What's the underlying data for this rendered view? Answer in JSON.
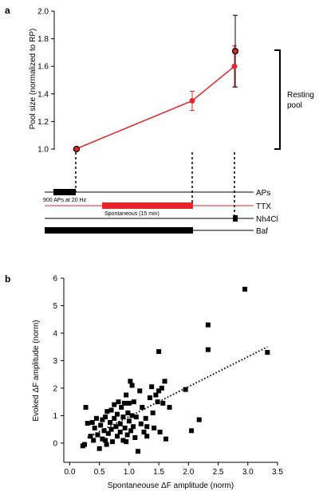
{
  "panels": {
    "a": "a",
    "b": "b"
  },
  "colors": {
    "red": "#e8232a",
    "black": "#000000"
  },
  "chart_data": [
    {
      "panel": "a",
      "type": "line",
      "ylabel": "Pool size (normalized to RP)",
      "ylim": [
        1.0,
        2.0
      ],
      "yticks": [
        "1.0",
        "1.2",
        "1.4",
        "1.6",
        "1.8",
        "2.0"
      ],
      "series": [
        {
          "color": "#e8232a",
          "points": [
            {
              "t": 0,
              "y": 1.0,
              "err": 0
            },
            {
              "t": 1,
              "y": 1.35,
              "err": 0.07
            },
            {
              "t": 2,
              "y": 1.6,
              "err": 0.15
            }
          ]
        },
        {
          "color": "#000000",
          "points": [
            {
              "t": 0,
              "y": 1.0,
              "err": 0
            },
            {
              "t": 2,
              "y": 1.71,
              "err": 0.26
            }
          ]
        }
      ],
      "bracket_label": [
        "Resting",
        "pool"
      ],
      "protocol_rows": [
        {
          "label": "APs",
          "bar_label": "900 APs at 20 Hz"
        },
        {
          "label": "TTX",
          "bar_label": "Spontaneous (15 min)"
        },
        {
          "label": "Nh4Cl",
          "bar_label": ""
        },
        {
          "label": "Baf",
          "bar_label": ""
        }
      ]
    },
    {
      "panel": "b",
      "type": "scatter",
      "xlabel": "Spontaneouse ΔF amplitude (norm)",
      "ylabel": "Evoked ΔF amplitude (norm)",
      "xlim": [
        -0.1,
        3.5
      ],
      "ylim": [
        -0.7,
        6
      ],
      "xticks": [
        "0.0",
        "0.5",
        "1.0",
        "1.5",
        "2.0",
        "2.5",
        "3.0",
        "3.5"
      ],
      "yticks": [
        "0",
        "1",
        "2",
        "3",
        "4",
        "5",
        "6"
      ],
      "trendline": {
        "x": [
          0.3,
          3.33
        ],
        "y": [
          0.2,
          3.5
        ]
      },
      "points": [
        [
          0.22,
          -0.1
        ],
        [
          0.25,
          -0.05
        ],
        [
          0.27,
          1.3
        ],
        [
          0.3,
          0.72
        ],
        [
          0.35,
          0.25
        ],
        [
          0.38,
          0.75
        ],
        [
          0.4,
          0.1
        ],
        [
          0.42,
          0.55
        ],
        [
          0.45,
          0.9
        ],
        [
          0.47,
          0.3
        ],
        [
          0.5,
          -0.2
        ],
        [
          0.52,
          0.65
        ],
        [
          0.55,
          0.85
        ],
        [
          0.55,
          0.15
        ],
        [
          0.58,
          0.45
        ],
        [
          0.6,
          0.95
        ],
        [
          0.62,
          -0.05
        ],
        [
          0.63,
          1.15
        ],
        [
          0.65,
          0.35
        ],
        [
          0.68,
          0.75
        ],
        [
          0.7,
          1.2
        ],
        [
          0.7,
          0.5
        ],
        [
          0.72,
          0.05
        ],
        [
          0.75,
          0.9
        ],
        [
          0.75,
          1.4
        ],
        [
          0.78,
          0.6
        ],
        [
          0.8,
          0.25
        ],
        [
          0.8,
          1.05
        ],
        [
          0.82,
          1.5
        ],
        [
          0.85,
          0.4
        ],
        [
          0.85,
          0.7
        ],
        [
          0.87,
          1.3
        ],
        [
          0.9,
          0.1
        ],
        [
          0.9,
          0.95
        ],
        [
          0.92,
          1.45
        ],
        [
          0.93,
          0.55
        ],
        [
          0.95,
          1.75
        ],
        [
          0.97,
          0.3
        ],
        [
          0.98,
          1.1
        ],
        [
          1.0,
          0.8
        ],
        [
          1.0,
          1.45
        ],
        [
          1.02,
          2.25
        ],
        [
          1.03,
          0.45
        ],
        [
          1.05,
          2.1
        ],
        [
          1.05,
          1.0
        ],
        [
          1.07,
          0.6
        ],
        [
          1.08,
          1.5
        ],
        [
          1.1,
          0.2
        ],
        [
          1.12,
          0.95
        ],
        [
          1.15,
          -0.3
        ],
        [
          1.18,
          1.9
        ],
        [
          1.2,
          0.7
        ],
        [
          1.22,
          1.3
        ],
        [
          1.25,
          0.4
        ],
        [
          1.28,
          0.9
        ],
        [
          1.3,
          0.25
        ],
        [
          1.35,
          1.65
        ],
        [
          1.38,
          2.05
        ],
        [
          1.4,
          1.1
        ],
        [
          1.42,
          0.55
        ],
        [
          1.45,
          1.75
        ],
        [
          1.48,
          1.5
        ],
        [
          1.5,
          3.33
        ],
        [
          1.5,
          1.9
        ],
        [
          1.52,
          0.4
        ],
        [
          1.55,
          2.0
        ],
        [
          1.57,
          1.45
        ],
        [
          1.6,
          2.25
        ],
        [
          1.62,
          0.15
        ],
        [
          1.68,
          1.3
        ],
        [
          1.95,
          1.95
        ],
        [
          2.05,
          0.45
        ],
        [
          2.18,
          0.85
        ],
        [
          2.33,
          3.4
        ],
        [
          2.33,
          4.3
        ],
        [
          2.95,
          5.6
        ],
        [
          3.33,
          3.3
        ],
        [
          0.6,
          0.1
        ],
        [
          1.3,
          0.6
        ],
        [
          0.95,
          0.05
        ]
      ]
    }
  ]
}
